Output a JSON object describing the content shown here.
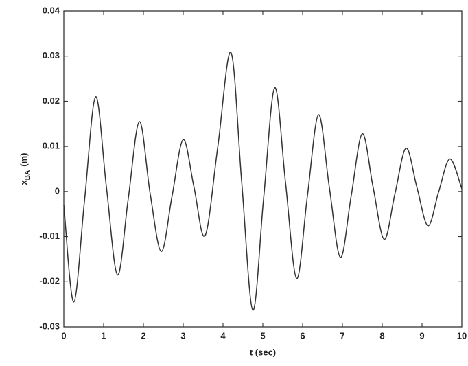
{
  "chart_data": {
    "type": "line",
    "xlabel": "t (sec)",
    "ylabel": {
      "base": "x",
      "sub": "BA",
      "unit": "(m)"
    },
    "x": [
      0,
      0.25,
      0.52,
      0.8,
      1.07,
      1.35,
      1.62,
      1.9,
      2.17,
      2.45,
      2.72,
      3.0,
      3.27,
      3.55,
      3.87,
      4.2,
      4.47,
      4.75,
      5.02,
      5.3,
      5.57,
      5.85,
      6.12,
      6.4,
      6.67,
      6.95,
      7.22,
      7.5,
      7.77,
      8.05,
      8.32,
      8.6,
      8.87,
      9.15,
      9.42,
      9.7,
      10
    ],
    "series": [
      {
        "color": "#333333",
        "values": [
          -0.003,
          -0.0245,
          -0.002,
          0.021,
          0.001,
          -0.0185,
          -0.0015,
          0.0155,
          -0.0005,
          -0.0133,
          -0.001,
          0.0115,
          0.001,
          -0.0098,
          0.01,
          0.0308,
          0.002,
          -0.0263,
          -0.0015,
          0.023,
          0.002,
          -0.0193,
          -0.001,
          0.017,
          0.001,
          -0.0146,
          -0.001,
          0.0128,
          0.001,
          -0.0106,
          -0.0005,
          0.0096,
          0.001,
          -0.0076,
          0,
          0.0072,
          0.0006
        ]
      }
    ],
    "xlim": [
      0,
      10
    ],
    "xticks": [
      0,
      1,
      2,
      3,
      4,
      5,
      6,
      7,
      8,
      9,
      10
    ],
    "ylim": [
      -0.03,
      0.04
    ],
    "yticks": [
      -0.03,
      -0.02,
      -0.01,
      0,
      0.01,
      0.02,
      0.03,
      0.04
    ],
    "grid": false
  }
}
